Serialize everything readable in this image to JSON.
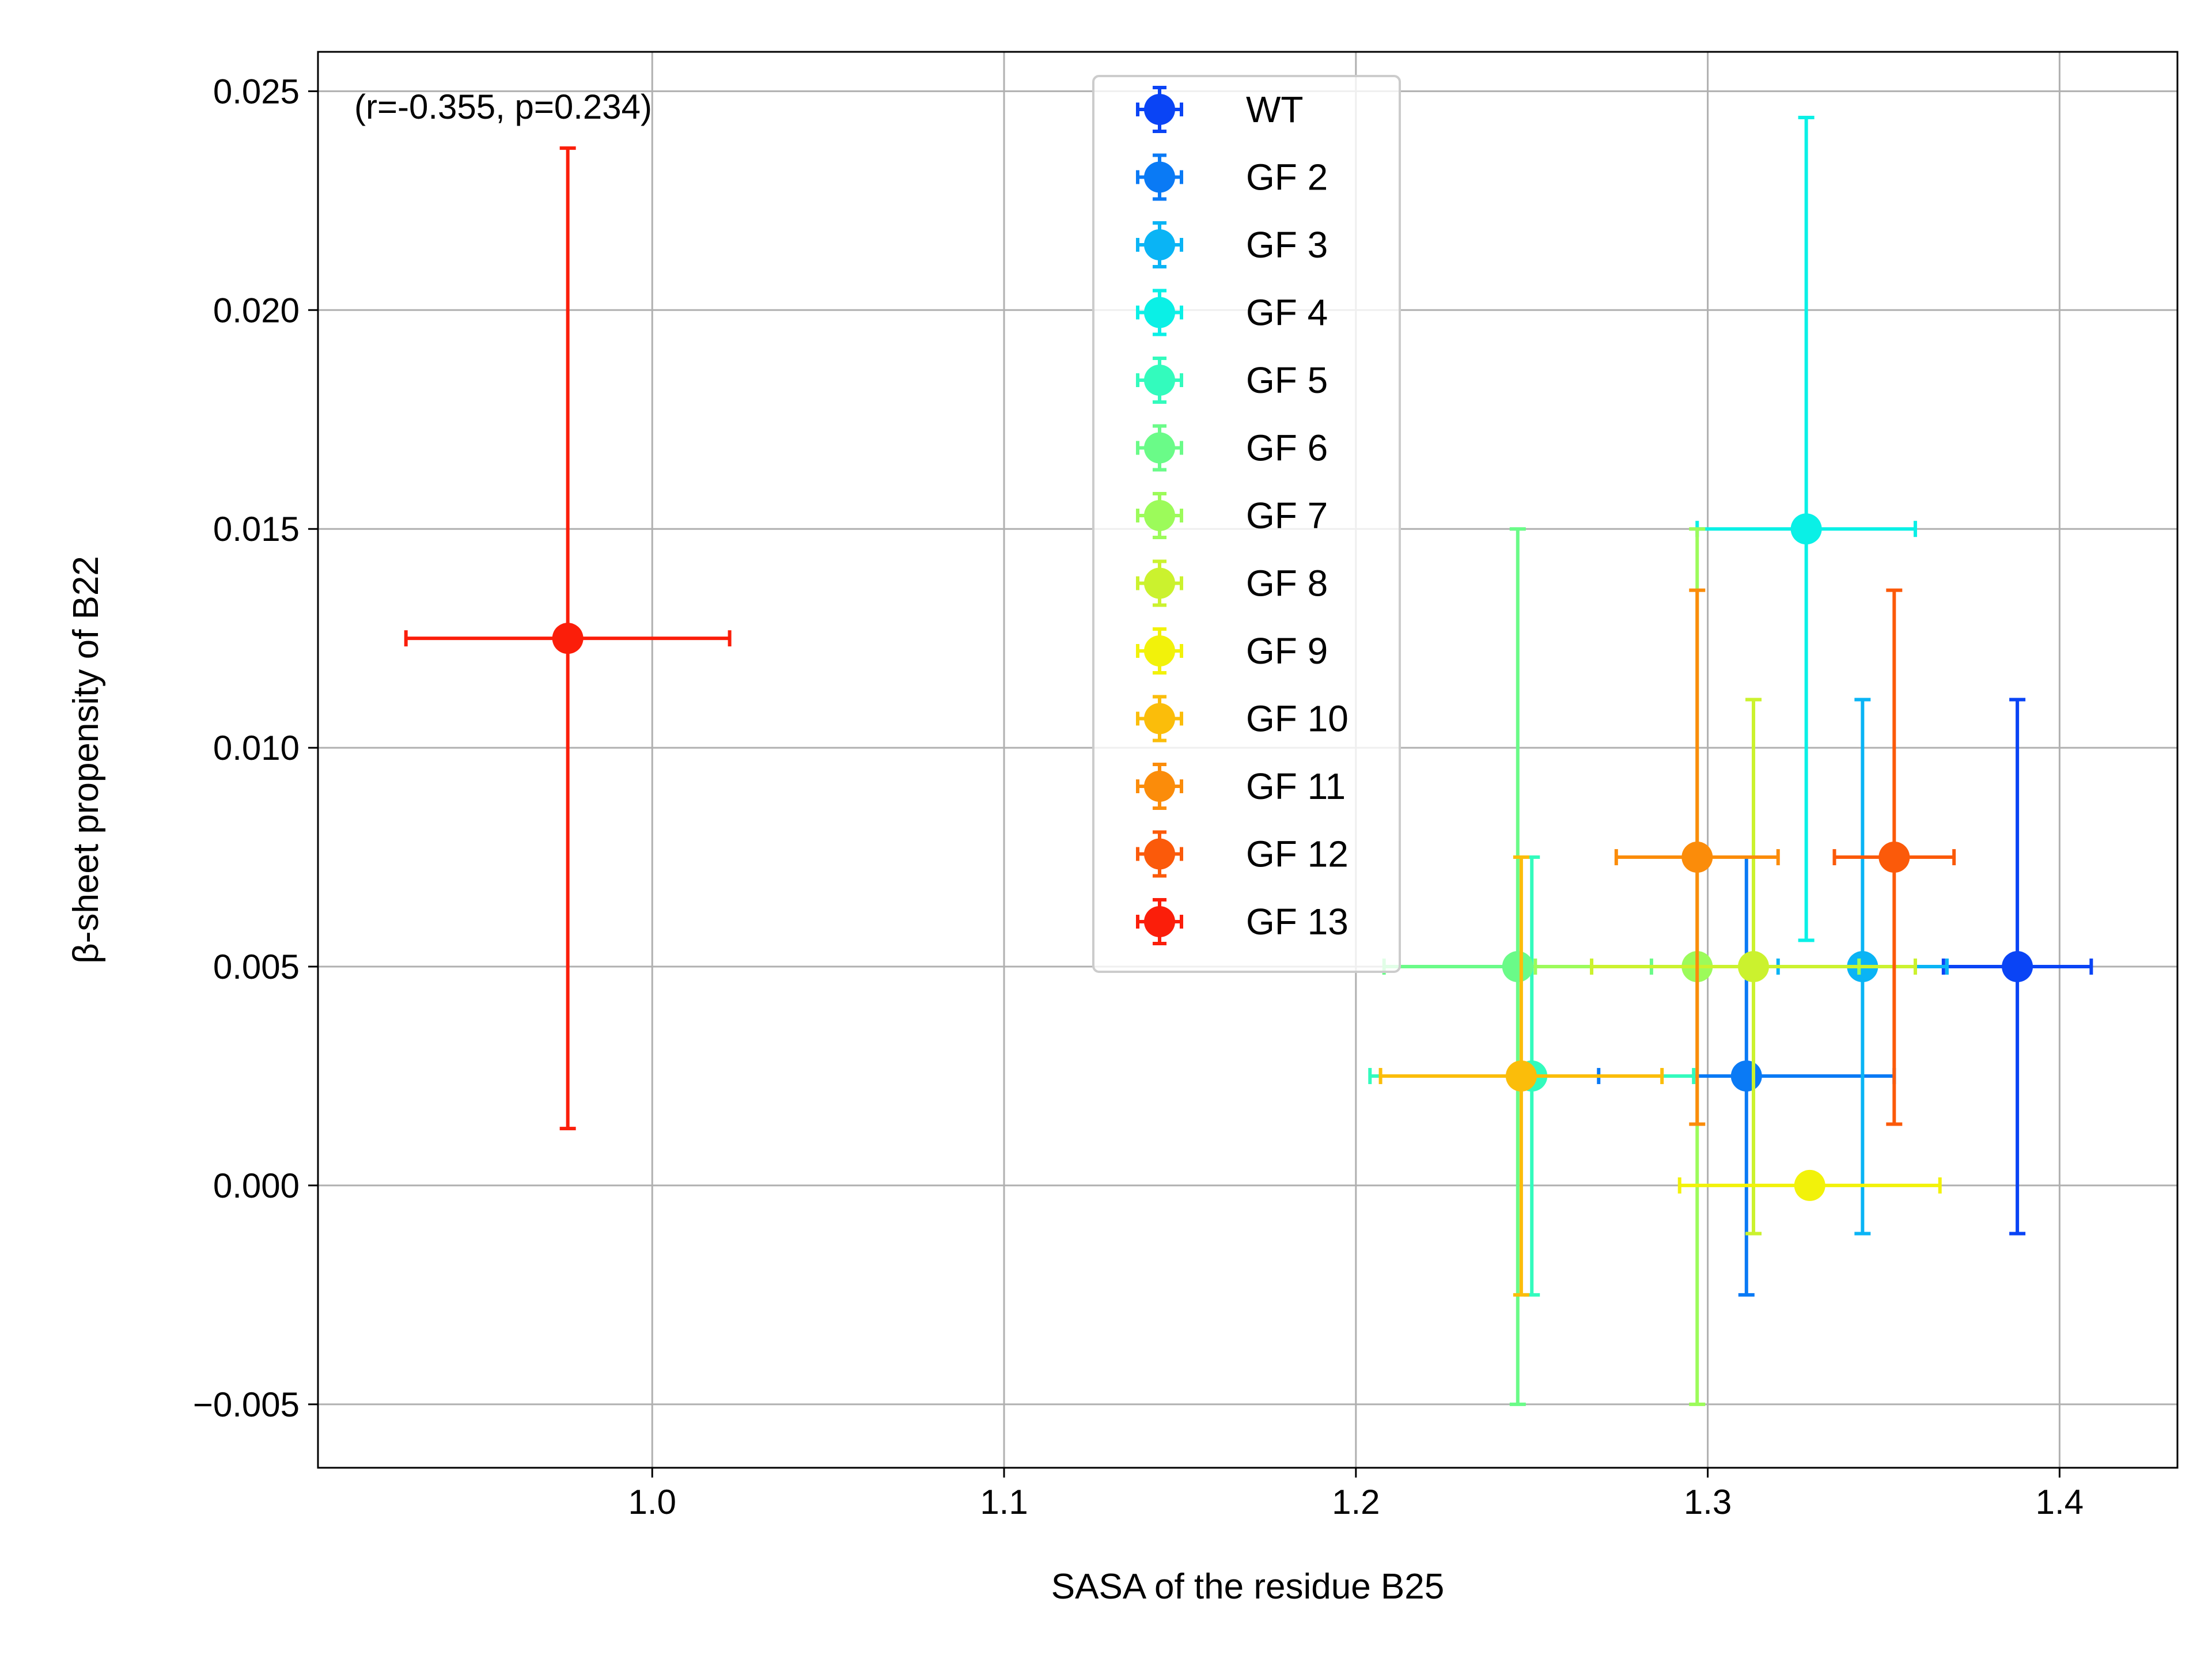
{
  "chart_data": {
    "type": "scatter",
    "xlabel": "SASA of the residue B25",
    "ylabel": "β-sheet propensity of B22",
    "xlim": [
      0.905,
      1.4335
    ],
    "ylim": [
      -0.00645,
      0.0259
    ],
    "xticks": [
      1.0,
      1.1,
      1.2,
      1.3,
      1.4
    ],
    "xtick_labels": [
      "1.0",
      "1.1",
      "1.2",
      "1.3",
      "1.4"
    ],
    "yticks": [
      -0.005,
      0.0,
      0.005,
      0.01,
      0.015,
      0.02,
      0.025
    ],
    "ytick_labels": [
      "−0.005",
      "0.000",
      "0.005",
      "0.010",
      "0.015",
      "0.020",
      "0.025"
    ],
    "grid": true,
    "legend_position": "upper-center",
    "annotation": "(r=-0.355, p=0.234)",
    "series": [
      {
        "name": "WT",
        "color": "#0a44f5",
        "x": 1.388,
        "y": 0.005,
        "xerr": 0.021,
        "yerr": 0.0061
      },
      {
        "name": "GF 2",
        "color": "#0a7af5",
        "x": 1.311,
        "y": 0.0025,
        "xerr": 0.042,
        "yerr": 0.005
      },
      {
        "name": "GF 3",
        "color": "#0ab4f5",
        "x": 1.344,
        "y": 0.005,
        "xerr": 0.024,
        "yerr": 0.0061
      },
      {
        "name": "GF 4",
        "color": "#0af0e6",
        "x": 1.328,
        "y": 0.015,
        "xerr": 0.031,
        "yerr": 0.0094
      },
      {
        "name": "GF 5",
        "color": "#33fbbd",
        "x": 1.25,
        "y": 0.0025,
        "xerr": 0.046,
        "yerr": 0.005
      },
      {
        "name": "GF 6",
        "color": "#6afb88",
        "x": 1.246,
        "y": 0.005,
        "xerr": 0.038,
        "yerr": 0.01
      },
      {
        "name": "GF 7",
        "color": "#9cfb5a",
        "x": 1.297,
        "y": 0.005,
        "xerr": 0.046,
        "yerr": 0.01
      },
      {
        "name": "GF 8",
        "color": "#cbf22e",
        "x": 1.313,
        "y": 0.005,
        "xerr": 0.046,
        "yerr": 0.0061
      },
      {
        "name": "GF 9",
        "color": "#f2f20a",
        "x": 1.329,
        "y": 0.0,
        "xerr": 0.037,
        "yerr": 0.0
      },
      {
        "name": "GF 10",
        "color": "#fbbd0a",
        "x": 1.247,
        "y": 0.0025,
        "xerr": 0.04,
        "yerr": 0.005
      },
      {
        "name": "GF 11",
        "color": "#fb8c0a",
        "x": 1.297,
        "y": 0.0075,
        "xerr": 0.023,
        "yerr": 0.0061
      },
      {
        "name": "GF 12",
        "color": "#fb5a0a",
        "x": 1.353,
        "y": 0.0075,
        "xerr": 0.017,
        "yerr": 0.0061
      },
      {
        "name": "GF 13",
        "color": "#fb1e0a",
        "x": 0.976,
        "y": 0.0125,
        "xerr": 0.046,
        "yerr": 0.0112
      }
    ]
  }
}
